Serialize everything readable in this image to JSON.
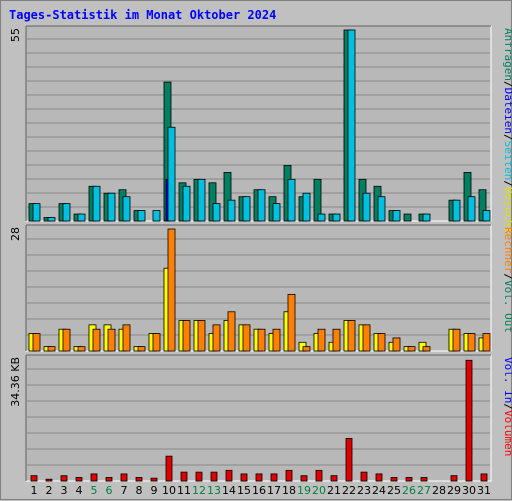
{
  "title": "Tages-Statistik im Monat Oktober 2024",
  "chart_data": {
    "type": "bar",
    "title": "Tages-Statistik im Monat Oktober 2024",
    "categories": [
      "1",
      "2",
      "3",
      "4",
      "5",
      "6",
      "7",
      "8",
      "9",
      "10",
      "11",
      "12",
      "13",
      "14",
      "15",
      "16",
      "17",
      "18",
      "19",
      "20",
      "21",
      "22",
      "23",
      "24",
      "25",
      "26",
      "27",
      "28",
      "29",
      "30",
      "31"
    ],
    "weekend_days": [
      "5",
      "6",
      "12",
      "13",
      "19",
      "20",
      "26",
      "27"
    ],
    "weekend_color": "#008040",
    "weekday_color": "#000000",
    "panels": [
      {
        "name": "traffic",
        "ymax_label": "55",
        "ylim": [
          0,
          55
        ],
        "right_legend": [
          {
            "text": "Anfragen",
            "color": "#008060"
          },
          {
            "text": "/",
            "color": "#000000"
          },
          {
            "text": "Dateien",
            "color": "#0000ff"
          },
          {
            "text": "/",
            "color": "#000000"
          },
          {
            "text": "Seiten",
            "color": "#00c0e0"
          },
          {
            "text": "/",
            "color": "#000000"
          },
          {
            "text": "Besuche",
            "color": "#e0e000"
          }
        ],
        "series": [
          {
            "name": "Anfragen",
            "color": "#008060",
            "values": [
              5,
              1,
              5,
              2,
              10,
              8,
              9,
              3,
              0,
              40,
              11,
              12,
              11,
              14,
              7,
              9,
              7,
              16,
              7,
              12,
              2,
              55,
              12,
              10,
              3,
              2,
              2,
              0,
              6,
              14,
              9
            ]
          },
          {
            "name": "Dateien",
            "color": "#0000ff",
            "values": [
              0,
              0,
              0,
              0,
              0,
              0,
              0,
              0,
              0,
              12,
              0,
              0,
              0,
              0,
              0,
              0,
              0,
              0,
              0,
              0,
              0,
              0,
              0,
              0,
              0,
              0,
              0,
              0,
              0,
              0,
              0
            ]
          },
          {
            "name": "Seiten",
            "color": "#00c0e0",
            "values": [
              5,
              1,
              5,
              2,
              10,
              8,
              7,
              3,
              3,
              27,
              10,
              12,
              5,
              6,
              7,
              9,
              5,
              12,
              8,
              2,
              2,
              55,
              8,
              7,
              3,
              0,
              2,
              0,
              6,
              7,
              3
            ]
          }
        ]
      },
      {
        "name": "visits",
        "ymax_label": "28",
        "ylim": [
          0,
          28
        ],
        "right_legend": [
          {
            "text": "Rechner",
            "color": "#ff8000"
          },
          {
            "text": "/",
            "color": "#000000"
          },
          {
            "text": "Vol. Out",
            "color": "#008060"
          }
        ],
        "series": [
          {
            "name": "Besuche",
            "color": "#ffff00",
            "values": [
              4,
              1,
              5,
              1,
              6,
              6,
              5,
              1,
              4,
              19,
              7,
              7,
              4,
              7,
              6,
              5,
              4,
              9,
              2,
              4,
              2,
              7,
              6,
              4,
              2,
              1,
              2,
              0,
              5,
              4,
              3
            ]
          },
          {
            "name": "Rechner",
            "color": "#ff8000",
            "values": [
              4,
              1,
              5,
              1,
              5,
              5,
              6,
              1,
              4,
              28,
              7,
              7,
              6,
              9,
              6,
              5,
              5,
              13,
              1,
              5,
              5,
              7,
              6,
              4,
              3,
              1,
              1,
              0,
              5,
              4,
              4
            ]
          }
        ]
      },
      {
        "name": "volume",
        "ymax_label": "34.36 KB",
        "ylim": [
          0,
          34.36
        ],
        "right_legend": [
          {
            "text": "Vol. In",
            "color": "#0000ff"
          },
          {
            "text": "/",
            "color": "#000000"
          },
          {
            "text": "Volumen",
            "color": "#ff0000"
          }
        ],
        "series": [
          {
            "name": "Volumen",
            "color": "#e00000",
            "values": [
              1.5,
              0.5,
              1.5,
              1,
              2,
              1,
              2,
              1,
              0.8,
              7,
              2.5,
              2.5,
              2.5,
              3,
              2,
              2,
              2,
              3,
              1.5,
              3,
              1.5,
              12,
              2.5,
              2,
              1,
              1,
              1,
              0,
              1.5,
              34,
              2
            ]
          }
        ]
      }
    ]
  }
}
